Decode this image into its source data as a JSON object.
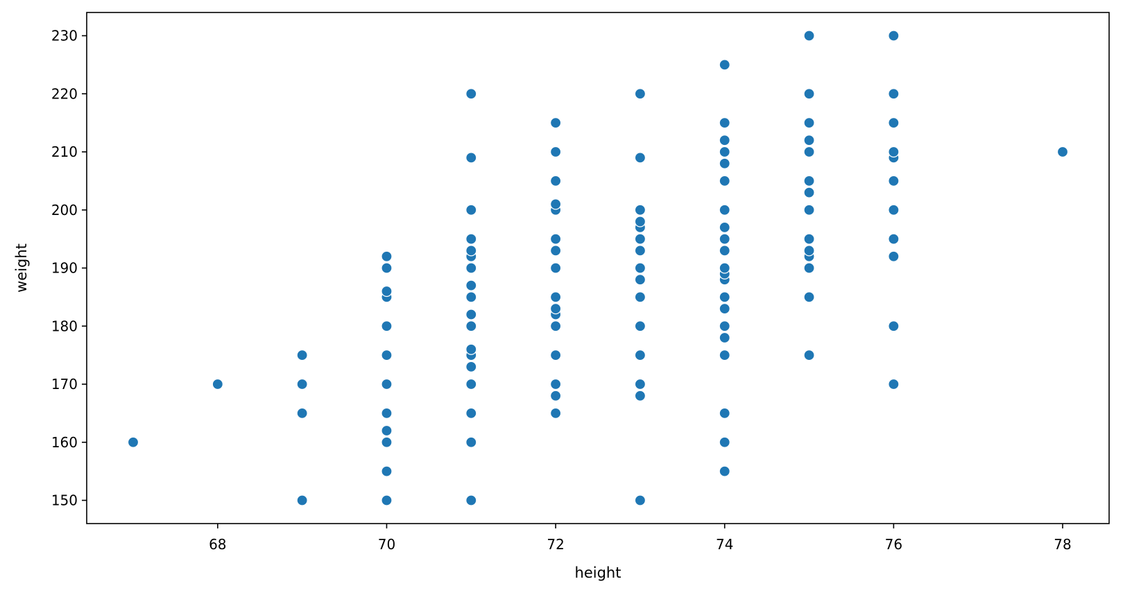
{
  "chart_data": {
    "type": "scatter",
    "title": "",
    "xlabel": "height",
    "ylabel": "weight",
    "xlim": [
      66.45,
      78.55
    ],
    "ylim": [
      146,
      234
    ],
    "xticks": [
      68,
      70,
      72,
      74,
      76,
      78
    ],
    "yticks": [
      150,
      160,
      170,
      180,
      190,
      200,
      210,
      220,
      230
    ],
    "grid": false,
    "legend": "none",
    "marker_color": "#1f77b4",
    "points": [
      [
        67,
        160
      ],
      [
        68,
        170
      ],
      [
        69,
        150
      ],
      [
        69,
        165
      ],
      [
        69,
        170
      ],
      [
        69,
        175
      ],
      [
        70,
        150
      ],
      [
        70,
        155
      ],
      [
        70,
        160
      ],
      [
        70,
        162
      ],
      [
        70,
        165
      ],
      [
        70,
        170
      ],
      [
        70,
        175
      ],
      [
        70,
        180
      ],
      [
        70,
        185
      ],
      [
        70,
        186
      ],
      [
        70,
        190
      ],
      [
        70,
        192
      ],
      [
        71,
        150
      ],
      [
        71,
        160
      ],
      [
        71,
        165
      ],
      [
        71,
        170
      ],
      [
        71,
        173
      ],
      [
        71,
        175
      ],
      [
        71,
        176
      ],
      [
        71,
        180
      ],
      [
        71,
        182
      ],
      [
        71,
        185
      ],
      [
        71,
        187
      ],
      [
        71,
        190
      ],
      [
        71,
        192
      ],
      [
        71,
        193
      ],
      [
        71,
        195
      ],
      [
        71,
        200
      ],
      [
        71,
        209
      ],
      [
        71,
        220
      ],
      [
        72,
        165
      ],
      [
        72,
        168
      ],
      [
        72,
        170
      ],
      [
        72,
        175
      ],
      [
        72,
        180
      ],
      [
        72,
        182
      ],
      [
        72,
        183
      ],
      [
        72,
        185
      ],
      [
        72,
        190
      ],
      [
        72,
        193
      ],
      [
        72,
        195
      ],
      [
        72,
        200
      ],
      [
        72,
        201
      ],
      [
        72,
        205
      ],
      [
        72,
        210
      ],
      [
        72,
        215
      ],
      [
        73,
        150
      ],
      [
        73,
        168
      ],
      [
        73,
        170
      ],
      [
        73,
        175
      ],
      [
        73,
        180
      ],
      [
        73,
        185
      ],
      [
        73,
        188
      ],
      [
        73,
        190
      ],
      [
        73,
        193
      ],
      [
        73,
        195
      ],
      [
        73,
        197
      ],
      [
        73,
        198
      ],
      [
        73,
        200
      ],
      [
        73,
        209
      ],
      [
        73,
        220
      ],
      [
        74,
        155
      ],
      [
        74,
        160
      ],
      [
        74,
        165
      ],
      [
        74,
        175
      ],
      [
        74,
        178
      ],
      [
        74,
        180
      ],
      [
        74,
        183
      ],
      [
        74,
        185
      ],
      [
        74,
        188
      ],
      [
        74,
        189
      ],
      [
        74,
        190
      ],
      [
        74,
        193
      ],
      [
        74,
        195
      ],
      [
        74,
        197
      ],
      [
        74,
        200
      ],
      [
        74,
        205
      ],
      [
        74,
        208
      ],
      [
        74,
        210
      ],
      [
        74,
        212
      ],
      [
        74,
        215
      ],
      [
        74,
        225
      ],
      [
        75,
        175
      ],
      [
        75,
        185
      ],
      [
        75,
        190
      ],
      [
        75,
        192
      ],
      [
        75,
        193
      ],
      [
        75,
        195
      ],
      [
        75,
        200
      ],
      [
        75,
        203
      ],
      [
        75,
        205
      ],
      [
        75,
        210
      ],
      [
        75,
        212
      ],
      [
        75,
        215
      ],
      [
        75,
        220
      ],
      [
        75,
        230
      ],
      [
        76,
        170
      ],
      [
        76,
        180
      ],
      [
        76,
        192
      ],
      [
        76,
        195
      ],
      [
        76,
        200
      ],
      [
        76,
        205
      ],
      [
        76,
        209
      ],
      [
        76,
        210
      ],
      [
        76,
        215
      ],
      [
        76,
        220
      ],
      [
        76,
        230
      ],
      [
        78,
        210
      ]
    ]
  }
}
